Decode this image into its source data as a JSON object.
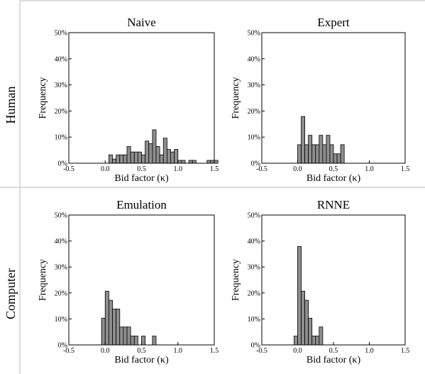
{
  "row_labels": [
    "Human",
    "Computer"
  ],
  "chart_data": [
    {
      "type": "bar",
      "title": "Naive",
      "xlabel": "Bid factor (κ)",
      "ylabel": "Frequency",
      "xlim": [
        -0.5,
        1.5
      ],
      "ylim": [
        0,
        0.5
      ],
      "x_ticks": [
        "-0.5",
        "0.0",
        "0.5",
        "1.0",
        "1.5"
      ],
      "y_ticks": [
        "0%",
        "10%",
        "20%",
        "30%",
        "40%",
        "50%"
      ],
      "bin_width": 0.05,
      "x": [
        0.05,
        0.1,
        0.15,
        0.2,
        0.25,
        0.3,
        0.35,
        0.4,
        0.45,
        0.5,
        0.55,
        0.6,
        0.65,
        0.7,
        0.75,
        0.8,
        0.85,
        0.9,
        0.95,
        1.0,
        1.05,
        1.15,
        1.2,
        1.4,
        1.45,
        1.5
      ],
      "values": [
        0.032,
        0.016,
        0.032,
        0.032,
        0.032,
        0.064,
        0.043,
        0.043,
        0.043,
        0.032,
        0.085,
        0.075,
        0.128,
        0.064,
        0.032,
        0.096,
        0.053,
        0.043,
        0.053,
        0.011,
        0.011,
        0.011,
        0.011,
        0.011,
        0.011,
        0.011
      ]
    },
    {
      "type": "bar",
      "title": "Expert",
      "xlabel": "Bid factor (κ)",
      "ylabel": "Frequency",
      "xlim": [
        -0.5,
        1.5
      ],
      "ylim": [
        0,
        0.5
      ],
      "x_ticks": [
        "-0.5",
        "0.0",
        "0.5",
        "1.0",
        "1.5"
      ],
      "y_ticks": [
        "0%",
        "10%",
        "20%",
        "30%",
        "40%",
        "50%"
      ],
      "bin_width": 0.05,
      "x": [
        0.0,
        0.05,
        0.1,
        0.15,
        0.2,
        0.25,
        0.3,
        0.35,
        0.4,
        0.45,
        0.5,
        0.55,
        0.6,
        0.65
      ],
      "values": [
        0.071,
        0.179,
        0.071,
        0.107,
        0.071,
        0.071,
        0.107,
        0.071,
        0.107,
        0.071,
        0.036,
        0.036,
        0.071,
        0.0
      ]
    },
    {
      "type": "bar",
      "title": "Emulation",
      "xlabel": "Bid factor (κ)",
      "ylabel": "Frequency",
      "xlim": [
        -0.5,
        1.5
      ],
      "ylim": [
        0,
        0.5
      ],
      "x_ticks": [
        "-0.5",
        "0.0",
        "0.5",
        "1.0",
        "1.5"
      ],
      "y_ticks": [
        "0%",
        "10%",
        "20%",
        "30%",
        "40%",
        "50%"
      ],
      "bin_width": 0.05,
      "x": [
        -0.05,
        0.0,
        0.05,
        0.1,
        0.15,
        0.2,
        0.25,
        0.3,
        0.35,
        0.4,
        0.45,
        0.5,
        0.55,
        0.6,
        0.65
      ],
      "values": [
        0.103,
        0.207,
        0.172,
        0.138,
        0.138,
        0.069,
        0.069,
        0.069,
        0.034,
        0.034,
        0.0,
        0.034,
        0.0,
        0.0,
        0.034
      ]
    },
    {
      "type": "bar",
      "title": "RNNE",
      "xlabel": "Bid factor (κ)",
      "ylabel": "Frequency",
      "xlim": [
        -0.5,
        1.5
      ],
      "ylim": [
        0,
        0.5
      ],
      "x_ticks": [
        "-0.5",
        "0.0",
        "0.5",
        "1.0",
        "1.5"
      ],
      "y_ticks": [
        "0%",
        "10%",
        "20%",
        "30%",
        "40%",
        "50%"
      ],
      "bin_width": 0.05,
      "x": [
        -0.05,
        0.0,
        0.05,
        0.1,
        0.15,
        0.2,
        0.25,
        0.3
      ],
      "values": [
        0.034,
        0.379,
        0.207,
        0.172,
        0.103,
        0.034,
        0.034,
        0.069
      ]
    }
  ]
}
